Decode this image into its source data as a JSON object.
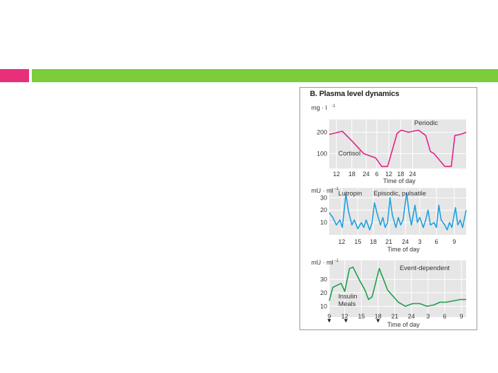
{
  "slide": {
    "accent_colors": {
      "pink": "#e8307a",
      "green": "#7ccc3c"
    }
  },
  "figure": {
    "title": "B. Plasma level dynamics"
  },
  "chart_data": [
    {
      "type": "line",
      "ylabel": "mg · l",
      "ylabel_sup": "-1",
      "label": "Cortisol",
      "annotation": "Periodic",
      "xlabel": "Time of day",
      "x_ticks": [
        "12",
        "18",
        "24",
        "6",
        "12",
        "18",
        "24"
      ],
      "y_ticks": [
        "200",
        "100"
      ],
      "ylim": [
        30,
        260
      ],
      "color": "#e0208a",
      "series": [
        {
          "name": "Cortisol",
          "x": [
            0,
            1.1,
            1.9,
            2.9,
            3.9,
            4.4,
            4.9,
            5.7,
            6.05,
            6.65,
            7.5,
            8.1,
            8.5,
            8.8,
            9.7,
            10.25,
            10.55,
            11.0,
            11.5
          ],
          "values": [
            190,
            205,
            160,
            100,
            80,
            40,
            40,
            195,
            210,
            200,
            210,
            185,
            110,
            100,
            40,
            40,
            185,
            190,
            200
          ]
        }
      ]
    },
    {
      "type": "line",
      "ylabel": "mU · ml",
      "ylabel_sup": "-1",
      "label": "Lutropin",
      "annotation": "Episodic, pulsatile",
      "xlabel": "Time of day",
      "x_ticks": [
        "12",
        "15",
        "18",
        "21",
        "24",
        "3",
        "6",
        "9"
      ],
      "y_ticks": [
        "30",
        "20",
        "10"
      ],
      "ylim": [
        0,
        38
      ],
      "color": "#1aa0e0",
      "series": [
        {
          "name": "Lutropin",
          "x": [
            0,
            0.3,
            0.6,
            0.9,
            1.1,
            1.4,
            1.6,
            1.9,
            2.1,
            2.4,
            2.7,
            2.9,
            3.1,
            3.4,
            3.6,
            3.8,
            4.0,
            4.3,
            4.5,
            4.7,
            4.9,
            5.1,
            5.3,
            5.6,
            5.8,
            6.0,
            6.2,
            6.5,
            6.7,
            6.9,
            7.2,
            7.4,
            7.6,
            7.9,
            8.1,
            8.3,
            8.5,
            8.8,
            9.0,
            9.2,
            9.4,
            9.7,
            9.9,
            10.1,
            10.3,
            10.6,
            10.8,
            11.0,
            11.2,
            11.5
          ],
          "values": [
            18,
            14,
            8,
            12,
            6,
            33,
            20,
            8,
            12,
            5,
            10,
            6,
            12,
            4,
            10,
            26,
            18,
            8,
            14,
            6,
            10,
            30,
            16,
            6,
            14,
            8,
            12,
            34,
            18,
            8,
            24,
            10,
            14,
            6,
            12,
            20,
            8,
            10,
            6,
            24,
            12,
            8,
            4,
            10,
            6,
            22,
            8,
            12,
            6,
            20
          ]
        }
      ]
    },
    {
      "type": "line",
      "ylabel": "mU · ml",
      "ylabel_sup": "-1",
      "label": "Insulin",
      "label2": "Meals",
      "annotation": "Event-dependent",
      "xlabel": "Time of day",
      "x_ticks": [
        "9",
        "12",
        "15",
        "18",
        "21",
        "24",
        "3",
        "6",
        "9"
      ],
      "y_ticks": [
        "30",
        "20",
        "10"
      ],
      "ylim": [
        2,
        44
      ],
      "color": "#1a9e4a",
      "series": [
        {
          "name": "Insulin",
          "x": [
            0,
            0.3,
            1.0,
            1.3,
            1.7,
            2.0,
            2.5,
            3.0,
            3.3,
            3.6,
            4.2,
            4.6,
            4.9,
            5.3,
            5.8,
            6.4,
            7.0,
            7.6,
            8.2,
            8.8,
            9.3,
            9.8,
            10.4,
            11.0,
            11.5
          ],
          "values": [
            14,
            24,
            27,
            21,
            38,
            39,
            30,
            22,
            15,
            17,
            38,
            29,
            22,
            18,
            13,
            10,
            12,
            12,
            10,
            11,
            13,
            13,
            14,
            15,
            15
          ]
        }
      ],
      "meal_markers_x": [
        0,
        1.4,
        4.1
      ]
    }
  ]
}
